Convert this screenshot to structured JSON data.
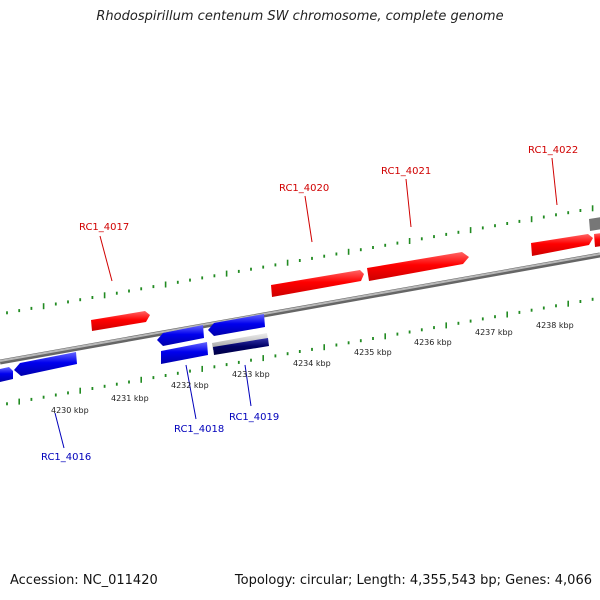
{
  "title": "Rhodospirillum centenum SW chromosome, complete genome",
  "footer": {
    "accession": "Accession: NC_011420",
    "stats": "Topology: circular; Length: 4,355,543 bp; Genes: 4,066"
  },
  "colors": {
    "forward_gene": "#ff0000",
    "reverse_gene": "#0000ee",
    "reverse_gene_dark": "#000066",
    "pseudo_gene": "#bbbbbb",
    "backbone": "#888888",
    "ticks": "#228b22",
    "forward_label": "#d00000",
    "reverse_label": "#0000bb"
  },
  "scale_labels": [
    "4230 kbp",
    "4231 kbp",
    "4232 kbp",
    "4233 kbp",
    "4234 kbp",
    "4235 kbp",
    "4236 kbp",
    "4237 kbp",
    "4238 kbp"
  ],
  "gene_labels": {
    "forward": [
      "RC1_4017",
      "RC1_4020",
      "RC1_4021",
      "RC1_4022"
    ],
    "reverse": [
      "RC1_4016",
      "RC1_4018",
      "RC1_4019"
    ]
  }
}
